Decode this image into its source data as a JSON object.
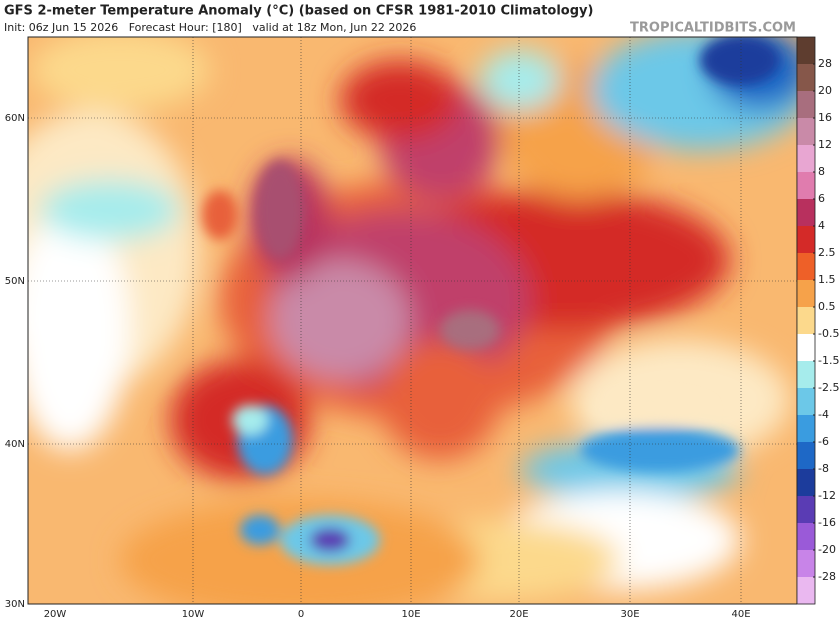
{
  "header": {
    "title": "GFS 2-meter Temperature Anomaly (°C) (based on CFSR 1981-2010 Climatology)",
    "subtitle": "Init: 06z Jun 15 2026   Forecast Hour: [180]   valid at 18z Mon, Jun 22 2026",
    "watermark": "TROPICALTIDBITS.COM"
  },
  "map": {
    "lat_labels": [
      "60N",
      "50N",
      "40N",
      "30N"
    ],
    "lon_labels": [
      "20W",
      "10W",
      "0",
      "10E",
      "20E",
      "30E",
      "40E"
    ]
  },
  "colorbar": {
    "levels": [
      28,
      20,
      16,
      12,
      8,
      6,
      4,
      2.5,
      1.5,
      0.5,
      -0.5,
      -1.5,
      -2.5,
      -4,
      -6,
      -8,
      -12,
      -16,
      -20,
      -28
    ],
    "colors": [
      "#5e3d2f",
      "#86574a",
      "#a86e7e",
      "#c98aa8",
      "#e8a6d2",
      "#e07cae",
      "#b8305e",
      "#d42a28",
      "#ee6028",
      "#f6a24a",
      "#fcd98c",
      "#ffffff",
      "#a6ecec",
      "#6cc8e8",
      "#3a9ce0",
      "#1e68c6",
      "#1c3c9c",
      "#5a3cb4",
      "#9a5ad8",
      "#c884e8",
      "#eab8f0"
    ]
  }
}
